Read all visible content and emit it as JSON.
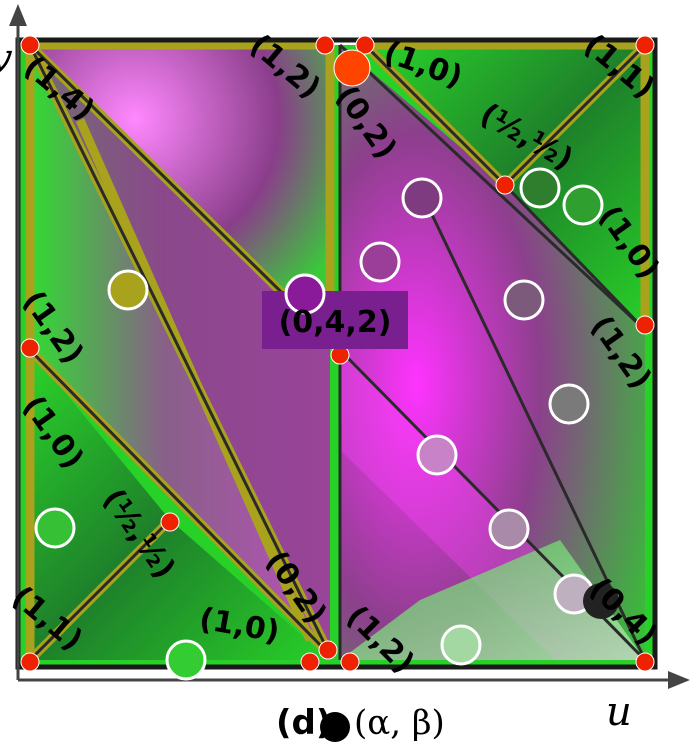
{
  "axes": {
    "x_label": "u",
    "y_label": "v"
  },
  "caption": {
    "prefix": "(d)",
    "text": "(α, β)"
  },
  "center_badge": {
    "text": "(0,4,2)",
    "color": "#7a1f8f"
  },
  "labels": {
    "top_left_corner": "(1,4)",
    "top_mid_left": "(1,2)",
    "top_mid_right": "(1,0)",
    "top_right_corner": "(1,1)",
    "top_mid_below": "(0,2)",
    "top_right_half": "(½,½)",
    "right_upper": "(1,0)",
    "right_lower": "(1,2)",
    "left_upper": "(1,2)",
    "left_lower": "(1,0)",
    "left_half": "(½,½)",
    "bottom_left_corner": "(1,1)",
    "bottom_left_mid": "(1,0)",
    "bottom_mid_left": "(0,2)",
    "bottom_mid_right": "(1,2)",
    "bottom_right_corner": "(0,4)"
  },
  "colors": {
    "green": "#1fd61f",
    "magenta": "#ff33ff",
    "olive": "#a8a21c",
    "vertex_red": "#ee2200",
    "axis": "#444444"
  }
}
